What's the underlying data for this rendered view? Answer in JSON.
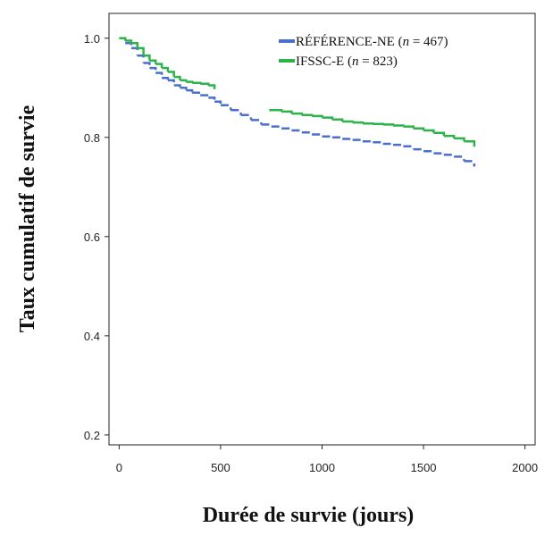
{
  "chart_data": {
    "type": "line",
    "xlabel": "Durée de survie (jours)",
    "ylabel": "Taux cumulatif de survie",
    "xlim": [
      -50,
      2050
    ],
    "ylim": [
      0.18,
      1.05
    ],
    "x_ticks": [
      0,
      500,
      1000,
      1500,
      2000
    ],
    "x_tick_labels": [
      "0",
      "500",
      "1000",
      "1500",
      "2000"
    ],
    "y_ticks": [
      0.2,
      0.4,
      0.6,
      0.8,
      1.0
    ],
    "y_tick_labels": [
      "0.2",
      "0.4",
      "0.6",
      "0.8",
      "1.0"
    ],
    "grid": false,
    "legend_position": "top-right",
    "series": [
      {
        "name": "RÉFÉRENCE-NE",
        "n_label": "n",
        "n_value": "= 467)",
        "color": "#4a6fd0",
        "dash": true,
        "x": [
          0,
          30,
          60,
          90,
          120,
          150,
          180,
          210,
          240,
          270,
          300,
          330,
          360,
          400,
          440,
          470,
          500,
          550,
          600,
          650,
          700,
          750,
          800,
          850,
          900,
          950,
          1000,
          1050,
          1100,
          1150,
          1200,
          1250,
          1300,
          1350,
          1400,
          1450,
          1500,
          1550,
          1600,
          1650,
          1700,
          1750
        ],
        "y": [
          1.0,
          0.99,
          0.98,
          0.965,
          0.95,
          0.94,
          0.93,
          0.92,
          0.915,
          0.905,
          0.9,
          0.895,
          0.89,
          0.885,
          0.88,
          0.872,
          0.865,
          0.855,
          0.845,
          0.835,
          0.826,
          0.822,
          0.818,
          0.814,
          0.81,
          0.806,
          0.802,
          0.8,
          0.797,
          0.795,
          0.792,
          0.79,
          0.787,
          0.785,
          0.782,
          0.776,
          0.772,
          0.768,
          0.765,
          0.761,
          0.752,
          0.741
        ]
      },
      {
        "name": "IFSSC-E",
        "n_label": "n",
        "n_value": "= 823)",
        "color": "#2db34a",
        "dash": false,
        "x": [
          0,
          30,
          60,
          90,
          120,
          150,
          180,
          210,
          240,
          270,
          300,
          330,
          360,
          400,
          440,
          470,
          740,
          800,
          850,
          900,
          950,
          1000,
          1050,
          1100,
          1150,
          1200,
          1250,
          1300,
          1350,
          1400,
          1450,
          1500,
          1550,
          1600,
          1650,
          1700,
          1750
        ],
        "y": [
          1.0,
          0.995,
          0.99,
          0.98,
          0.965,
          0.955,
          0.948,
          0.94,
          0.932,
          0.922,
          0.915,
          0.912,
          0.91,
          0.908,
          0.905,
          0.897,
          0.855,
          0.852,
          0.848,
          0.845,
          0.843,
          0.84,
          0.836,
          0.832,
          0.83,
          0.828,
          0.827,
          0.826,
          0.824,
          0.822,
          0.818,
          0.814,
          0.809,
          0.803,
          0.798,
          0.792,
          0.781
        ]
      }
    ]
  }
}
